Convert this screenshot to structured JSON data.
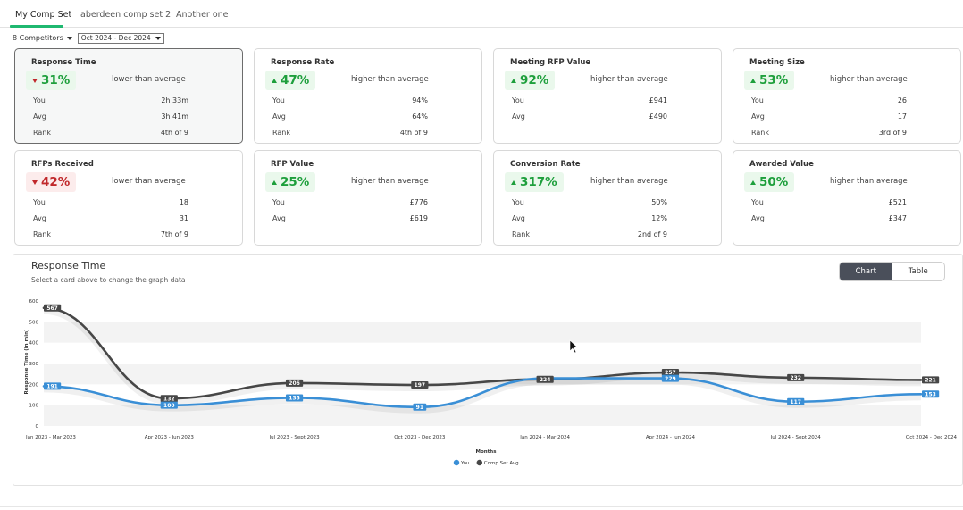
{
  "tabs": [
    {
      "label": "My Comp Set",
      "active": true
    },
    {
      "label": "aberdeen comp set 2",
      "active": false
    },
    {
      "label": "Another one",
      "active": false
    }
  ],
  "filters": {
    "competitors_label": "8 Competitors",
    "date_range": "Oct 2024 - Dec 2024"
  },
  "cards": [
    {
      "title": "Response Time",
      "change": "31%",
      "direction": "down",
      "pill_color": "green",
      "comparison": "lower than average",
      "selected": true,
      "stats": [
        {
          "label": "You",
          "value": "2h 33m"
        },
        {
          "label": "Avg",
          "value": "3h 41m"
        },
        {
          "label": "Rank",
          "value": "4th of 9"
        }
      ]
    },
    {
      "title": "Response Rate",
      "change": "47%",
      "direction": "up",
      "pill_color": "green",
      "comparison": "higher than average",
      "stats": [
        {
          "label": "You",
          "value": "94%"
        },
        {
          "label": "Avg",
          "value": "64%"
        },
        {
          "label": "Rank",
          "value": "4th of 9"
        }
      ]
    },
    {
      "title": "Meeting RFP Value",
      "change": "92%",
      "direction": "up",
      "pill_color": "green",
      "comparison": "higher than average",
      "stats": [
        {
          "label": "You",
          "value": "£941"
        },
        {
          "label": "Avg",
          "value": "£490"
        }
      ]
    },
    {
      "title": "Meeting Size",
      "change": "53%",
      "direction": "up",
      "pill_color": "green",
      "comparison": "higher than average",
      "stats": [
        {
          "label": "You",
          "value": "26"
        },
        {
          "label": "Avg",
          "value": "17"
        },
        {
          "label": "Rank",
          "value": "3rd of 9"
        }
      ]
    },
    {
      "title": "RFPs Received",
      "change": "42%",
      "direction": "down",
      "pill_color": "red",
      "comparison": "lower than average",
      "stats": [
        {
          "label": "You",
          "value": "18"
        },
        {
          "label": "Avg",
          "value": "31"
        },
        {
          "label": "Rank",
          "value": "7th of 9"
        }
      ]
    },
    {
      "title": "RFP Value",
      "change": "25%",
      "direction": "up",
      "pill_color": "green",
      "comparison": "higher than average",
      "stats": [
        {
          "label": "You",
          "value": "£776"
        },
        {
          "label": "Avg",
          "value": "£619"
        }
      ]
    },
    {
      "title": "Conversion Rate",
      "change": "317%",
      "direction": "up",
      "pill_color": "green",
      "comparison": "higher than average",
      "stats": [
        {
          "label": "You",
          "value": "50%"
        },
        {
          "label": "Avg",
          "value": "12%"
        },
        {
          "label": "Rank",
          "value": "2nd of 9"
        }
      ]
    },
    {
      "title": "Awarded Value",
      "change": "50%",
      "direction": "up",
      "pill_color": "green",
      "comparison": "higher than average",
      "stats": [
        {
          "label": "You",
          "value": "£521"
        },
        {
          "label": "Avg",
          "value": "£347"
        }
      ]
    }
  ],
  "panel": {
    "title": "Response Time",
    "subtitle": "Select a card above to change the graph data",
    "view_toggle": [
      {
        "label": "Chart",
        "active": true
      },
      {
        "label": "Table",
        "active": false
      }
    ]
  },
  "chart_data": {
    "type": "line",
    "categories": [
      "Jan 2023 - Mar 2023",
      "Apr 2023 - Jun 2023",
      "Jul 2023 - Sept 2023",
      "Oct 2023 - Dec 2023",
      "Jan 2024 - Mar 2024",
      "Apr 2024 - Jun 2024",
      "Jul 2024 - Sept 2024",
      "Oct 2024 - Dec 2024"
    ],
    "series": [
      {
        "name": "You",
        "color": "#3a8fd6",
        "values": [
          191,
          100,
          135,
          91,
          229,
          229,
          117,
          153
        ],
        "labels": [
          "191",
          "100",
          "135",
          "91",
          "",
          "229",
          "117",
          "153"
        ]
      },
      {
        "name": "Comp Set Avg",
        "color": "#474747",
        "values": [
          567,
          132,
          206,
          197,
          224,
          257,
          232,
          221
        ],
        "labels": [
          "567",
          "132",
          "206",
          "197",
          "224",
          "257",
          "232",
          "221"
        ]
      }
    ],
    "xlabel": "Months",
    "ylabel": "Response Time (in min)",
    "ylim": [
      0,
      600
    ],
    "yticks": [
      0,
      100,
      200,
      300,
      400,
      500,
      600
    ],
    "grid": "horizontal bands",
    "legend": "bottom-center"
  }
}
